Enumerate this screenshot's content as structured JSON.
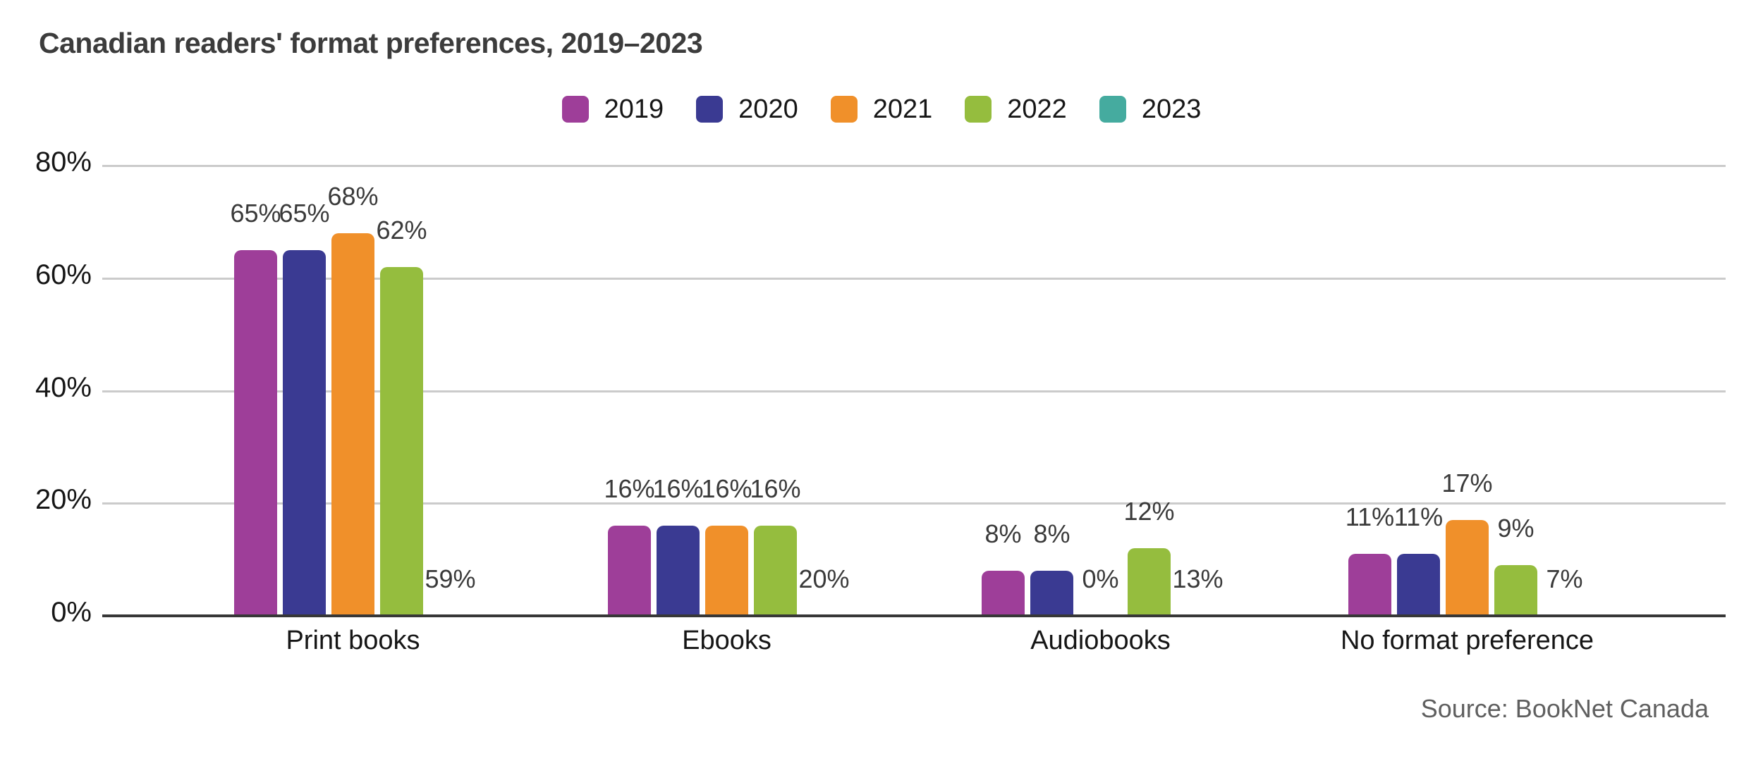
{
  "title": "Canadian readers' format preferences, 2019–2023",
  "source": "Source: BookNet Canada",
  "chart_data": {
    "type": "bar",
    "title": "Canadian readers' format preferences, 2019–2023",
    "categories": [
      "Print books",
      "Ebooks",
      "Audiobooks",
      "No format preference"
    ],
    "series": [
      {
        "name": "2019",
        "color": "#9e3e99",
        "values": [
          65,
          16,
          8,
          11
        ]
      },
      {
        "name": "2020",
        "color": "#3a3a92",
        "values": [
          65,
          16,
          8,
          11
        ]
      },
      {
        "name": "2021",
        "color": "#f0902a",
        "values": [
          68,
          16,
          0,
          17
        ]
      },
      {
        "name": "2022",
        "color": "#95bd3e",
        "values": [
          62,
          16,
          12,
          9
        ]
      },
      {
        "name": "2023",
        "color": "#45ab9f",
        "values": [
          59,
          20,
          13,
          7
        ]
      }
    ],
    "value_label_suffix": "%",
    "xlabel": "",
    "ylabel": "",
    "ylim": [
      0,
      80
    ],
    "yticks": [
      {
        "label": "0%",
        "value": 0
      },
      {
        "label": "20%",
        "value": 20
      },
      {
        "label": "40%",
        "value": 40
      },
      {
        "label": "60%",
        "value": 60
      },
      {
        "label": "80%",
        "value": 80
      }
    ],
    "grid": true,
    "legend_position": "top",
    "annotations": "value labels shown above every bar",
    "source_note": "Source: BookNet Canada"
  },
  "colors": {
    "background": "#ffffff",
    "grid": "#cbcbcb",
    "axis": "#373737",
    "title_text": "#3c3c3c",
    "tick_text": "#161616",
    "annotation_text": "#3a3a3a",
    "source_text": "#5f5f5f"
  }
}
